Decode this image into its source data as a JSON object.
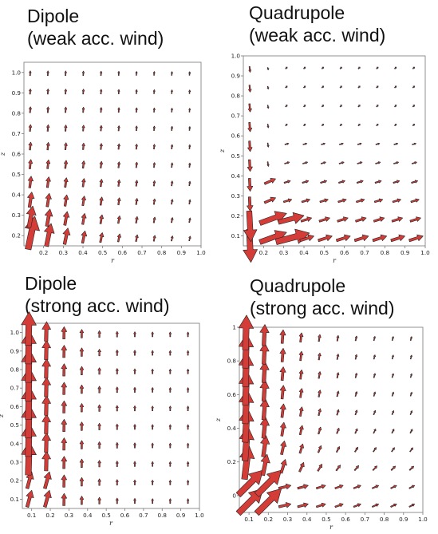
{
  "panels": [
    {
      "id": "dipole-weak",
      "title_line1": "Dipole",
      "title_line2": "(weak acc. wind)",
      "chart_data": {
        "type": "quiver",
        "xlabel": "r",
        "ylabel": "z",
        "xlim": [
          0.1,
          1.0
        ],
        "ylim": [
          0.15,
          1.05
        ],
        "xticks": [
          "0.2",
          "0.3",
          "0.4",
          "0.5",
          "0.6",
          "0.7",
          "0.8",
          "0.9",
          "1.0"
        ],
        "yticks": [
          "0.2",
          "0.3",
          "0.4",
          "0.5",
          "0.6",
          "0.7",
          "0.8",
          "0.9",
          "1.0"
        ],
        "field": "dipole_weak"
      }
    },
    {
      "id": "quadrupole-weak",
      "title_line1": "Quadrupole",
      "title_line2": "(weak acc. wind)",
      "chart_data": {
        "type": "quiver",
        "xlabel": "r",
        "ylabel": "z",
        "xlim": [
          0.1,
          1.0
        ],
        "ylim": [
          0.05,
          1.0
        ],
        "xticks": [
          "0.2",
          "0.3",
          "0.4",
          "0.5",
          "0.6",
          "0.7",
          "0.8",
          "0.9",
          "1.0"
        ],
        "yticks": [
          "0.1",
          "0.2",
          "0.3",
          "0.4",
          "0.5",
          "0.6",
          "0.7",
          "0.8",
          "0.9",
          "1.0"
        ],
        "field": "quadrupole_weak"
      }
    },
    {
      "id": "dipole-strong",
      "title_line1": "Dipole",
      "title_line2": "(strong acc. wind)",
      "chart_data": {
        "type": "quiver",
        "xlabel": "r",
        "ylabel": "z",
        "xlim": [
          0.05,
          1.0
        ],
        "ylim": [
          0.05,
          1.05
        ],
        "xticks": [
          "0.1",
          "0.2",
          "0.3",
          "0.4",
          "0.5",
          "0.6",
          "0.7",
          "0.8",
          "0.9",
          "1.0"
        ],
        "yticks": [
          "0.1",
          "0.2",
          "0.3",
          "0.4",
          "0.5",
          "0.6",
          "0.7",
          "0.8",
          "0.9",
          "1.0"
        ],
        "field": "dipole_strong"
      }
    },
    {
      "id": "quadrupole-strong",
      "title_line1": "Quadrupole",
      "title_line2": "(strong acc. wind)",
      "chart_data": {
        "type": "quiver",
        "xlabel": "r",
        "ylabel": "z",
        "xlim": [
          0.05,
          1.0
        ],
        "ylim": [
          -0.1,
          1.0
        ],
        "xticks": [
          "0.1",
          "0.2",
          "0.3",
          "0.4",
          "0.5",
          "0.6",
          "0.7",
          "0.8",
          "0.9",
          "1.0"
        ],
        "yticks": [
          "0",
          "0.2",
          "0.4",
          "0.6",
          "0.8",
          "1"
        ],
        "field": "quadrupole_strong"
      }
    }
  ],
  "style": {
    "arrow_fill": "#d43c38",
    "arrow_stroke": "#222222",
    "axis_color": "#777777"
  }
}
